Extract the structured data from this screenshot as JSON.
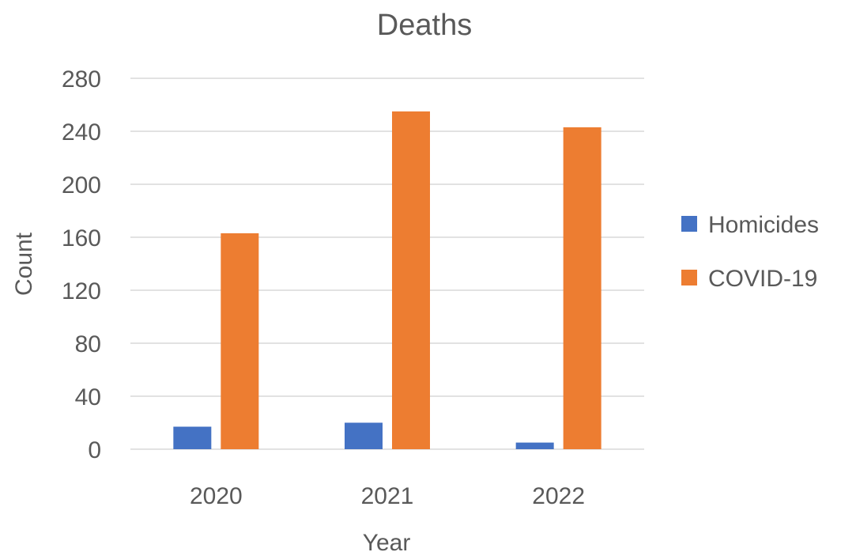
{
  "chart_data": {
    "type": "bar",
    "title": "Deaths",
    "xlabel": "Year",
    "ylabel": "Count",
    "categories": [
      "2020",
      "2021",
      "2022"
    ],
    "series": [
      {
        "name": "Homicides",
        "values": [
          17,
          20,
          5
        ],
        "color": "#4472C4"
      },
      {
        "name": "COVID-19",
        "values": [
          163,
          255,
          243
        ],
        "color": "#ED7D31"
      }
    ],
    "ylim": [
      0,
      280
    ],
    "yticks": [
      "0",
      "40",
      "80",
      "120",
      "160",
      "200",
      "240",
      "280"
    ],
    "grid": true,
    "legend": "right"
  }
}
